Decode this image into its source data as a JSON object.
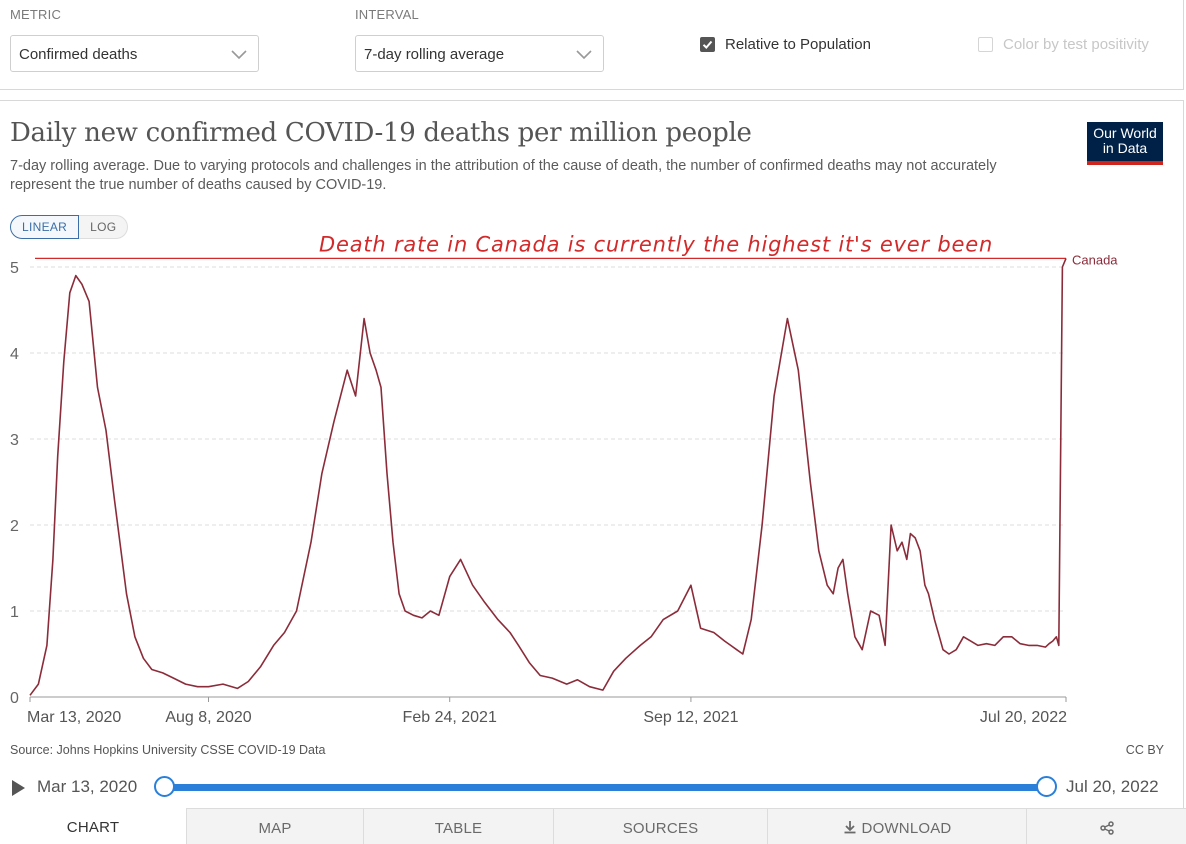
{
  "controls": {
    "metric_label": "METRIC",
    "metric_value": "Confirmed deaths",
    "interval_label": "INTERVAL",
    "interval_value": "7-day rolling average",
    "relative_label": "Relative to Population",
    "relative_checked": true,
    "color_label": "Color by test positivity",
    "color_checked": false
  },
  "header": {
    "title": "Daily new confirmed COVID-19 deaths per million people",
    "subtitle": "7-day rolling average. Due to varying protocols and challenges in the attribution of the cause of death, the number of confirmed deaths may not accurately represent the true number of deaths caused by COVID-19.",
    "logo_line1": "Our World",
    "logo_line2": "in Data"
  },
  "scale_toggle": {
    "linear": "LINEAR",
    "log": "LOG",
    "active": "LINEAR"
  },
  "chart_data": {
    "type": "line",
    "title": "Daily new confirmed COVID-19 deaths per million people",
    "ylim": [
      0,
      5
    ],
    "yticks": [
      "0",
      "1",
      "2",
      "3",
      "4",
      "5"
    ],
    "xtick_labels": [
      "Mar 13, 2020",
      "Aug 8, 2020",
      "Feb 24, 2021",
      "Sep 12, 2021",
      "Jul 20, 2022"
    ],
    "xtick_dates": [
      "2020-03-13",
      "2020-08-08",
      "2021-02-24",
      "2021-09-12",
      "2022-07-20"
    ],
    "grid": true,
    "series": [
      {
        "name": "Canada",
        "color": "#8b2c3a",
        "x": [
          "2020-03-13",
          "2020-03-20",
          "2020-03-27",
          "2020-04-01",
          "2020-04-05",
          "2020-04-10",
          "2020-04-15",
          "2020-04-20",
          "2020-04-25",
          "2020-05-01",
          "2020-05-08",
          "2020-05-15",
          "2020-05-22",
          "2020-06-01",
          "2020-06-08",
          "2020-06-15",
          "2020-06-22",
          "2020-07-01",
          "2020-07-10",
          "2020-07-20",
          "2020-07-30",
          "2020-08-08",
          "2020-08-20",
          "2020-09-01",
          "2020-09-10",
          "2020-09-20",
          "2020-10-01",
          "2020-10-10",
          "2020-10-20",
          "2020-11-01",
          "2020-11-10",
          "2020-11-20",
          "2020-12-01",
          "2020-12-08",
          "2020-12-15",
          "2020-12-20",
          "2020-12-25",
          "2020-12-29",
          "2021-01-03",
          "2021-01-08",
          "2021-01-13",
          "2021-01-18",
          "2021-01-25",
          "2021-02-01",
          "2021-02-08",
          "2021-02-15",
          "2021-02-24",
          "2021-03-05",
          "2021-03-15",
          "2021-03-25",
          "2021-04-05",
          "2021-04-15",
          "2021-04-22",
          "2021-05-01",
          "2021-05-10",
          "2021-05-20",
          "2021-06-01",
          "2021-06-10",
          "2021-06-20",
          "2021-07-01",
          "2021-07-10",
          "2021-07-20",
          "2021-08-01",
          "2021-08-10",
          "2021-08-20",
          "2021-09-01",
          "2021-09-12",
          "2021-09-20",
          "2021-10-01",
          "2021-10-10",
          "2021-10-15",
          "2021-10-20",
          "2021-10-25",
          "2021-11-01",
          "2021-11-10",
          "2021-11-20",
          "2021-12-01",
          "2021-12-10",
          "2021-12-20",
          "2021-12-27",
          "2022-01-03",
          "2022-01-08",
          "2022-01-12",
          "2022-01-16",
          "2022-01-20",
          "2022-01-26",
          "2022-02-01",
          "2022-02-08",
          "2022-02-15",
          "2022-02-20",
          "2022-02-25",
          "2022-03-02",
          "2022-03-06",
          "2022-03-10",
          "2022-03-13",
          "2022-03-17",
          "2022-03-21",
          "2022-03-25",
          "2022-03-28",
          "2022-04-02",
          "2022-04-06",
          "2022-04-09",
          "2022-04-14",
          "2022-04-20",
          "2022-04-26",
          "2022-05-02",
          "2022-05-08",
          "2022-05-15",
          "2022-05-22",
          "2022-05-29",
          "2022-06-05",
          "2022-06-12",
          "2022-06-19",
          "2022-06-26",
          "2022-07-03",
          "2022-07-06",
          "2022-07-09",
          "2022-07-12",
          "2022-07-14",
          "2022-07-17",
          "2022-07-20"
        ],
        "values": [
          0.02,
          0.15,
          0.6,
          1.6,
          2.8,
          3.9,
          4.7,
          4.9,
          4.8,
          4.6,
          3.6,
          3.1,
          2.3,
          1.2,
          0.7,
          0.45,
          0.32,
          0.28,
          0.22,
          0.15,
          0.12,
          0.12,
          0.15,
          0.1,
          0.18,
          0.35,
          0.6,
          0.75,
          1.0,
          1.8,
          2.6,
          3.2,
          3.8,
          3.5,
          4.4,
          4.0,
          3.8,
          3.6,
          2.6,
          1.8,
          1.2,
          1.0,
          0.95,
          0.92,
          1.0,
          0.95,
          1.4,
          1.6,
          1.3,
          1.1,
          0.9,
          0.75,
          0.6,
          0.4,
          0.25,
          0.22,
          0.15,
          0.2,
          0.12,
          0.08,
          0.3,
          0.45,
          0.6,
          0.7,
          0.9,
          1.0,
          1.3,
          0.8,
          0.75,
          0.65,
          0.6,
          0.55,
          0.5,
          0.9,
          2.0,
          3.5,
          4.4,
          3.8,
          2.5,
          1.7,
          1.3,
          1.2,
          1.5,
          1.6,
          1.2,
          0.7,
          0.55,
          1.0,
          0.95,
          0.6,
          2.0,
          1.7,
          1.8,
          1.6,
          1.9,
          1.85,
          1.7,
          1.3,
          1.2,
          0.9,
          0.7,
          0.55,
          0.5,
          0.55,
          0.7,
          0.65,
          0.6,
          0.62,
          0.6,
          0.7,
          0.7,
          0.62,
          0.6,
          0.6,
          0.58,
          0.62,
          0.65,
          0.7,
          0.6,
          5.0,
          5.1
        ]
      }
    ],
    "annotation": "Death rate in Canada is currently the highest it's ever been"
  },
  "footer": {
    "source": "Source: Johns Hopkins University CSSE COVID-19 Data",
    "license": "CC BY"
  },
  "timeline": {
    "start": "Mar 13, 2020",
    "end": "Jul 20, 2022",
    "start_fraction": 0,
    "end_fraction": 1
  },
  "tabs": [
    "CHART",
    "MAP",
    "TABLE",
    "SOURCES",
    "DOWNLOAD"
  ],
  "active_tab": "CHART",
  "icons": {
    "download": "download-icon",
    "share": "share-icon",
    "play": "play-icon"
  }
}
